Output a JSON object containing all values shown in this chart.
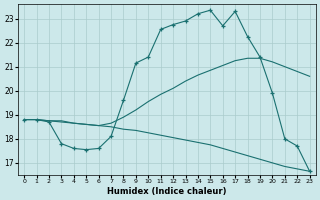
{
  "xlabel": "Humidex (Indice chaleur)",
  "bg_color": "#cce8ea",
  "grid_color": "#aacccc",
  "line_color": "#1a7070",
  "xlim_min": -0.5,
  "xlim_max": 23.5,
  "ylim_min": 16.5,
  "ylim_max": 23.6,
  "yticks": [
    17,
    18,
    19,
    20,
    21,
    22,
    23
  ],
  "xticks": [
    0,
    1,
    2,
    3,
    4,
    5,
    6,
    7,
    8,
    9,
    10,
    11,
    12,
    13,
    14,
    15,
    16,
    17,
    18,
    19,
    20,
    21,
    22,
    23
  ],
  "line1_x": [
    0,
    1,
    2,
    3,
    4,
    5,
    6,
    7,
    8,
    9,
    10,
    11,
    12,
    13,
    14,
    15,
    16,
    17,
    18,
    19,
    20,
    21,
    22,
    23
  ],
  "line1_y": [
    18.8,
    18.8,
    18.7,
    17.8,
    17.6,
    17.55,
    17.6,
    18.1,
    19.6,
    21.15,
    21.4,
    22.55,
    22.75,
    22.9,
    23.2,
    23.35,
    22.7,
    23.3,
    22.25,
    21.4,
    19.9,
    18.0,
    17.7,
    16.65
  ],
  "line2_x": [
    0,
    1,
    2,
    3,
    4,
    5,
    6,
    7,
    8,
    9,
    10,
    11,
    12,
    13,
    14,
    15,
    16,
    17,
    18,
    19,
    20,
    21,
    22,
    23
  ],
  "line2_y": [
    18.8,
    18.8,
    18.75,
    18.75,
    18.65,
    18.6,
    18.55,
    18.65,
    18.9,
    19.2,
    19.55,
    19.85,
    20.1,
    20.4,
    20.65,
    20.85,
    21.05,
    21.25,
    21.35,
    21.35,
    21.2,
    21.0,
    20.8,
    20.6
  ],
  "line3_x": [
    0,
    1,
    2,
    3,
    4,
    5,
    6,
    7,
    8,
    9,
    10,
    11,
    12,
    13,
    14,
    15,
    16,
    17,
    18,
    19,
    20,
    21,
    22,
    23
  ],
  "line3_y": [
    18.8,
    18.8,
    18.75,
    18.7,
    18.65,
    18.6,
    18.55,
    18.5,
    18.4,
    18.35,
    18.25,
    18.15,
    18.05,
    17.95,
    17.85,
    17.75,
    17.6,
    17.45,
    17.3,
    17.15,
    17.0,
    16.85,
    16.75,
    16.65
  ]
}
